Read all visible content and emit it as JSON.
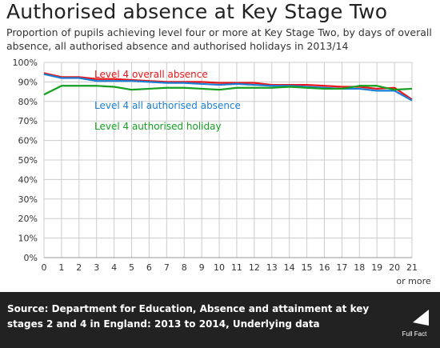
{
  "header": {
    "title": "Authorised absence at Key Stage Two",
    "subtitle": "Proportion of pupils achieving level four or more at Key Stage Two, by days of overall absence, all authorised absence and authorised holidays in 2013/14"
  },
  "footer": {
    "source": "Source: Department for Education, Absence and attainment at key stages 2 and 4 in England: 2013 to 2014, Underlying data",
    "logo_text": "Full Fact"
  },
  "chart_data": {
    "type": "line",
    "x": [
      0,
      1,
      2,
      3,
      4,
      5,
      6,
      7,
      8,
      9,
      10,
      11,
      12,
      13,
      14,
      15,
      16,
      17,
      18,
      19,
      20,
      21
    ],
    "x_tick_labels": [
      "0",
      "1",
      "2",
      "3",
      "4",
      "5",
      "6",
      "7",
      "8",
      "9",
      "10",
      "11",
      "12",
      "13",
      "14",
      "15",
      "16",
      "17",
      "18",
      "19",
      "20",
      "21"
    ],
    "x_last_suffix": "or more",
    "ylim": [
      0,
      100
    ],
    "y_ticks": [
      0,
      10,
      20,
      30,
      40,
      50,
      60,
      70,
      80,
      90,
      100
    ],
    "y_tick_labels": [
      "0%",
      "10%",
      "20%",
      "30%",
      "40%",
      "50%",
      "60%",
      "70%",
      "80%",
      "90%",
      "100%"
    ],
    "grid": true,
    "series": [
      {
        "name": "Level 4 overall absence",
        "color": "#e8161a",
        "values": [
          94.5,
          92.5,
          92.5,
          91.5,
          91.5,
          91,
          90.5,
          90,
          90,
          90,
          89.5,
          89.5,
          89.5,
          88.5,
          88.5,
          88.5,
          88,
          87.5,
          87.5,
          86.5,
          87,
          81
        ]
      },
      {
        "name": "Level 4 all authorised absence",
        "color": "#1a7fd4",
        "values": [
          94,
          92,
          92,
          90.5,
          90.5,
          90.5,
          90,
          89.5,
          89.5,
          89,
          88.5,
          89,
          88.5,
          88,
          88,
          87.5,
          87,
          86.5,
          86.5,
          85.5,
          85.5,
          80.5
        ]
      },
      {
        "name": "Level 4 authorised holiday",
        "color": "#14a020",
        "values": [
          83.5,
          88,
          88,
          88,
          87.5,
          86,
          86.5,
          87,
          87,
          86.5,
          86,
          87,
          87,
          87,
          87.5,
          87,
          86.5,
          86.5,
          88,
          88,
          86,
          86.5
        ]
      }
    ],
    "label_colors": [
      "#e8161a",
      "#1a7fd4",
      "#14a020"
    ]
  }
}
